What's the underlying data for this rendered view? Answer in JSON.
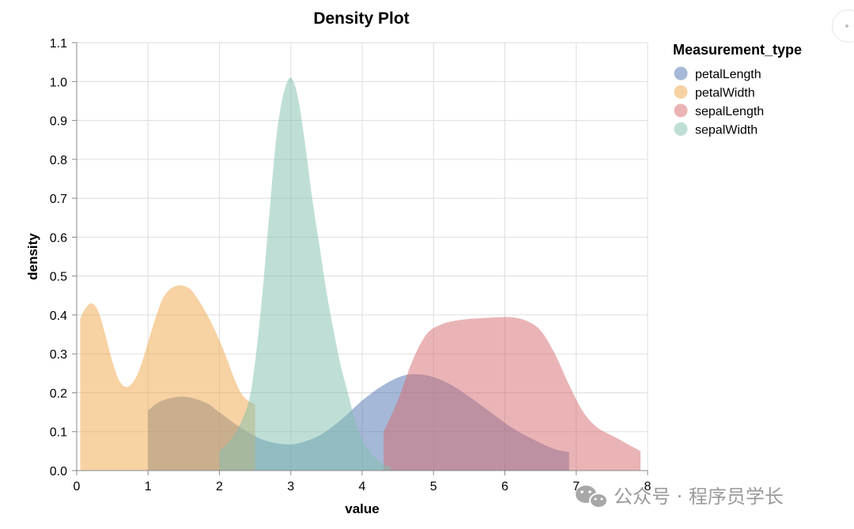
{
  "chart_data": {
    "type": "area",
    "title": "Density Plot",
    "xlabel": "value",
    "ylabel": "density",
    "xlim": [
      0,
      8
    ],
    "ylim": [
      0,
      1.1
    ],
    "xticks": [
      "0",
      "1",
      "2",
      "3",
      "4",
      "5",
      "6",
      "7",
      "8"
    ],
    "yticks": [
      "0.0",
      "0.1",
      "0.2",
      "0.3",
      "0.4",
      "0.5",
      "0.6",
      "0.7",
      "0.8",
      "0.9",
      "1.0",
      "1.1"
    ],
    "grid": true,
    "legend": {
      "title": "Measurement_type",
      "position": "top-right",
      "items": [
        "petalLength",
        "petalWidth",
        "sepalLength",
        "sepalWidth"
      ]
    },
    "series": [
      {
        "name": "petalLength",
        "color": "#4c72b0",
        "x": [
          1.0,
          1.2,
          1.5,
          1.8,
          2.0,
          2.3,
          2.6,
          2.9,
          3.1,
          3.4,
          3.7,
          4.0,
          4.3,
          4.6,
          4.9,
          5.2,
          5.5,
          5.8,
          6.1,
          6.4,
          6.7,
          6.9
        ],
        "y": [
          0.155,
          0.18,
          0.19,
          0.175,
          0.15,
          0.11,
          0.08,
          0.068,
          0.07,
          0.09,
          0.13,
          0.18,
          0.22,
          0.245,
          0.245,
          0.225,
          0.19,
          0.15,
          0.11,
          0.08,
          0.055,
          0.048
        ]
      },
      {
        "name": "petalWidth",
        "color": "#f0a547",
        "x": [
          0.05,
          0.1,
          0.2,
          0.3,
          0.4,
          0.5,
          0.6,
          0.7,
          0.8,
          0.9,
          1.0,
          1.1,
          1.2,
          1.3,
          1.4,
          1.5,
          1.6,
          1.7,
          1.8,
          1.9,
          2.0,
          2.1,
          2.2,
          2.3,
          2.4,
          2.5
        ],
        "y": [
          0.39,
          0.41,
          0.43,
          0.41,
          0.35,
          0.28,
          0.23,
          0.215,
          0.23,
          0.27,
          0.33,
          0.39,
          0.44,
          0.465,
          0.475,
          0.475,
          0.465,
          0.44,
          0.41,
          0.375,
          0.335,
          0.29,
          0.24,
          0.2,
          0.18,
          0.17
        ]
      },
      {
        "name": "sepalLength",
        "color": "#d66a6e",
        "x": [
          4.3,
          4.5,
          4.7,
          4.9,
          5.1,
          5.3,
          5.5,
          5.7,
          5.9,
          6.1,
          6.3,
          6.5,
          6.7,
          6.9,
          7.1,
          7.3,
          7.5,
          7.7,
          7.9
        ],
        "y": [
          0.1,
          0.18,
          0.28,
          0.35,
          0.375,
          0.385,
          0.39,
          0.392,
          0.394,
          0.394,
          0.385,
          0.36,
          0.3,
          0.22,
          0.15,
          0.11,
          0.09,
          0.07,
          0.05
        ]
      },
      {
        "name": "sepalWidth",
        "color": "#7fbfae",
        "x": [
          2.0,
          2.2,
          2.4,
          2.5,
          2.6,
          2.7,
          2.8,
          2.9,
          3.0,
          3.1,
          3.2,
          3.3,
          3.4,
          3.5,
          3.6,
          3.7,
          3.8,
          3.9,
          4.0,
          4.1,
          4.2,
          4.3,
          4.4
        ],
        "y": [
          0.05,
          0.09,
          0.17,
          0.28,
          0.45,
          0.66,
          0.86,
          0.97,
          1.01,
          0.96,
          0.84,
          0.7,
          0.58,
          0.46,
          0.36,
          0.27,
          0.2,
          0.13,
          0.08,
          0.05,
          0.03,
          0.015,
          0.01
        ]
      }
    ]
  },
  "watermark": {
    "icon": "wechat-icon",
    "text": "公众号 · 程序员学长"
  },
  "corner_button": {
    "icon": "dots-icon"
  }
}
